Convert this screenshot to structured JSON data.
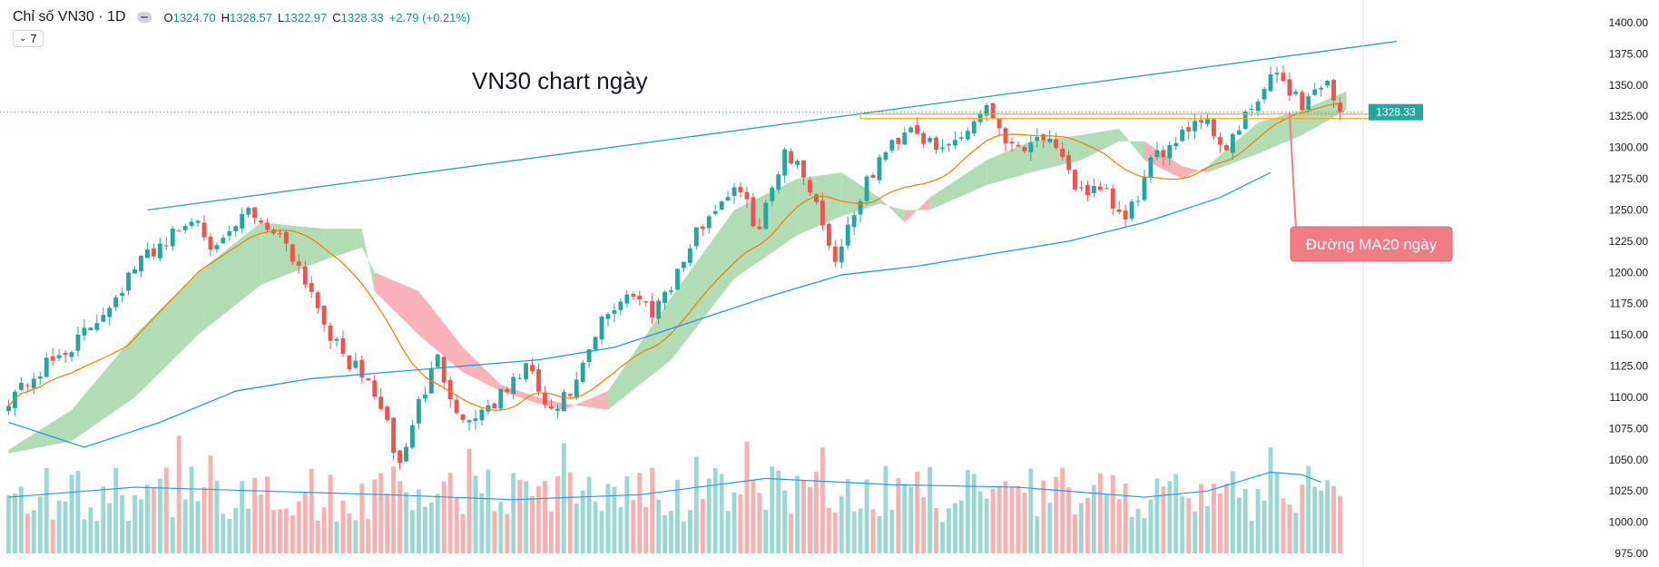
{
  "legend": {
    "title": "Chỉ số VN30 · 1D",
    "open_label": "O",
    "open": "1324.70",
    "high_label": "H",
    "high": "1328.57",
    "low_label": "L",
    "low": "1322.97",
    "close_label": "C",
    "close": "1328.33",
    "change": "+2.79 (+0.21%)",
    "indicator_count": "7"
  },
  "colors": {
    "up": "#26a69a",
    "down": "#ef5350",
    "ma20": "#f57c00",
    "ma200": "#2196f3",
    "cloud_bull": "#a5d6a7",
    "cloud_bear": "#f8a5ab",
    "trend": "#26a69a",
    "support": "#f5a623",
    "callout": "#f07d86"
  },
  "chart_data": {
    "type": "candlestick",
    "title": "VN30 chart ngày",
    "annotation": "Đường MA20 ngày",
    "last_price": "1328.33",
    "y_ticks": [
      "1400.00",
      "1375.00",
      "1350.00",
      "1325.00",
      "1300.00",
      "1275.00",
      "1250.00",
      "1225.00",
      "1200.00",
      "1175.00",
      "1150.00",
      "1125.00",
      "1100.00",
      "1075.00",
      "1050.00",
      "1025.00",
      "1000.00",
      "975.00"
    ],
    "y_range": [
      975,
      1400
    ],
    "candle_count": 212,
    "close_path": [
      [
        0,
        1100
      ],
      [
        12,
        1150
      ],
      [
        22,
        1215
      ],
      [
        30,
        1245
      ],
      [
        33,
        1215
      ],
      [
        38,
        1250
      ],
      [
        44,
        1225
      ],
      [
        48,
        1185
      ],
      [
        52,
        1140
      ],
      [
        58,
        1105
      ],
      [
        62,
        1045
      ],
      [
        65,
        1095
      ],
      [
        68,
        1130
      ],
      [
        72,
        1080
      ],
      [
        78,
        1100
      ],
      [
        82,
        1125
      ],
      [
        86,
        1085
      ],
      [
        90,
        1110
      ],
      [
        94,
        1160
      ],
      [
        98,
        1185
      ],
      [
        102,
        1170
      ],
      [
        106,
        1200
      ],
      [
        110,
        1240
      ],
      [
        115,
        1270
      ],
      [
        119,
        1235
      ],
      [
        123,
        1300
      ],
      [
        127,
        1270
      ],
      [
        131,
        1210
      ],
      [
        134,
        1250
      ],
      [
        138,
        1290
      ],
      [
        143,
        1320
      ],
      [
        147,
        1295
      ],
      [
        151,
        1310
      ],
      [
        155,
        1335
      ],
      [
        159,
        1300
      ],
      [
        164,
        1310
      ],
      [
        169,
        1270
      ],
      [
        174,
        1260
      ],
      [
        177,
        1240
      ],
      [
        181,
        1285
      ],
      [
        185,
        1310
      ],
      [
        189,
        1325
      ],
      [
        193,
        1300
      ],
      [
        197,
        1330
      ],
      [
        201,
        1360
      ],
      [
        205,
        1335
      ],
      [
        209,
        1355
      ],
      [
        211,
        1328
      ]
    ],
    "ma200_path": [
      [
        0,
        1080
      ],
      [
        12,
        1060
      ],
      [
        24,
        1080
      ],
      [
        36,
        1105
      ],
      [
        48,
        1115
      ],
      [
        60,
        1120
      ],
      [
        72,
        1125
      ],
      [
        84,
        1130
      ],
      [
        96,
        1140
      ],
      [
        108,
        1160
      ],
      [
        120,
        1180
      ],
      [
        132,
        1198
      ],
      [
        144,
        1205
      ],
      [
        156,
        1215
      ],
      [
        168,
        1225
      ],
      [
        180,
        1240
      ],
      [
        192,
        1260
      ],
      [
        200,
        1280
      ]
    ],
    "cloud": [
      [
        0,
        1055,
        1058,
        1
      ],
      [
        10,
        1065,
        1090,
        1
      ],
      [
        20,
        1100,
        1150,
        1
      ],
      [
        30,
        1150,
        1200,
        1
      ],
      [
        40,
        1190,
        1240,
        1
      ],
      [
        50,
        1210,
        1235,
        1
      ],
      [
        56,
        1220,
        1235,
        1
      ],
      [
        58,
        1200,
        1185,
        0
      ],
      [
        65,
        1185,
        1150,
        0
      ],
      [
        72,
        1140,
        1120,
        0
      ],
      [
        78,
        1110,
        1105,
        0
      ],
      [
        84,
        1100,
        1095,
        0
      ],
      [
        88,
        1095,
        1090,
        0
      ],
      [
        95,
        1090,
        1105,
        1
      ],
      [
        105,
        1130,
        1180,
        1
      ],
      [
        115,
        1195,
        1250,
        1
      ],
      [
        125,
        1230,
        1275,
        1
      ],
      [
        132,
        1245,
        1280,
        1
      ],
      [
        138,
        1255,
        1260,
        1
      ],
      [
        142,
        1250,
        1240,
        0
      ],
      [
        146,
        1250,
        1260,
        1
      ],
      [
        155,
        1270,
        1290,
        1
      ],
      [
        162,
        1280,
        1305,
        1
      ],
      [
        170,
        1290,
        1310,
        1
      ],
      [
        176,
        1305,
        1315,
        1
      ],
      [
        180,
        1305,
        1290,
        0
      ],
      [
        186,
        1285,
        1275,
        0
      ],
      [
        190,
        1280,
        1285,
        1
      ],
      [
        198,
        1295,
        1320,
        1
      ],
      [
        205,
        1310,
        1330,
        1
      ],
      [
        212,
        1330,
        1345,
        1
      ]
    ],
    "volume_ma_path": [
      [
        0,
        1020
      ],
      [
        20,
        1028
      ],
      [
        40,
        1025
      ],
      [
        60,
        1022
      ],
      [
        80,
        1018
      ],
      [
        100,
        1022
      ],
      [
        120,
        1035
      ],
      [
        140,
        1030
      ],
      [
        160,
        1028
      ],
      [
        180,
        1020
      ],
      [
        190,
        1025
      ],
      [
        200,
        1040
      ],
      [
        205,
        1038
      ],
      [
        208,
        1032
      ]
    ],
    "trendline": [
      [
        22,
        1250
      ],
      [
        220,
        1385
      ]
    ],
    "support_level": 1325,
    "support_range": [
      135,
      222
    ],
    "annotation_target": [
      203,
      1328
    ],
    "seed": 42
  }
}
